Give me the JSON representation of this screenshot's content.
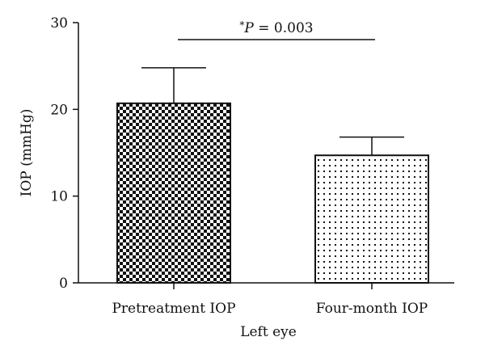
{
  "chart_data": {
    "type": "bar",
    "categories": [
      "Pretreatment IOP",
      "Four-month IOP"
    ],
    "values": [
      20.7,
      14.7
    ],
    "error_bars": [
      4.1,
      2.1
    ],
    "patterns": [
      "checkerboard",
      "dots"
    ],
    "xlabel": "Left eye",
    "ylabel": "IOP (mmHg)",
    "ylim": [
      0,
      30
    ],
    "yticks": [
      0,
      10,
      20,
      30
    ],
    "grid": false,
    "annotation": {
      "star": "*",
      "italic": "P",
      "rest": " = 0.003"
    }
  }
}
